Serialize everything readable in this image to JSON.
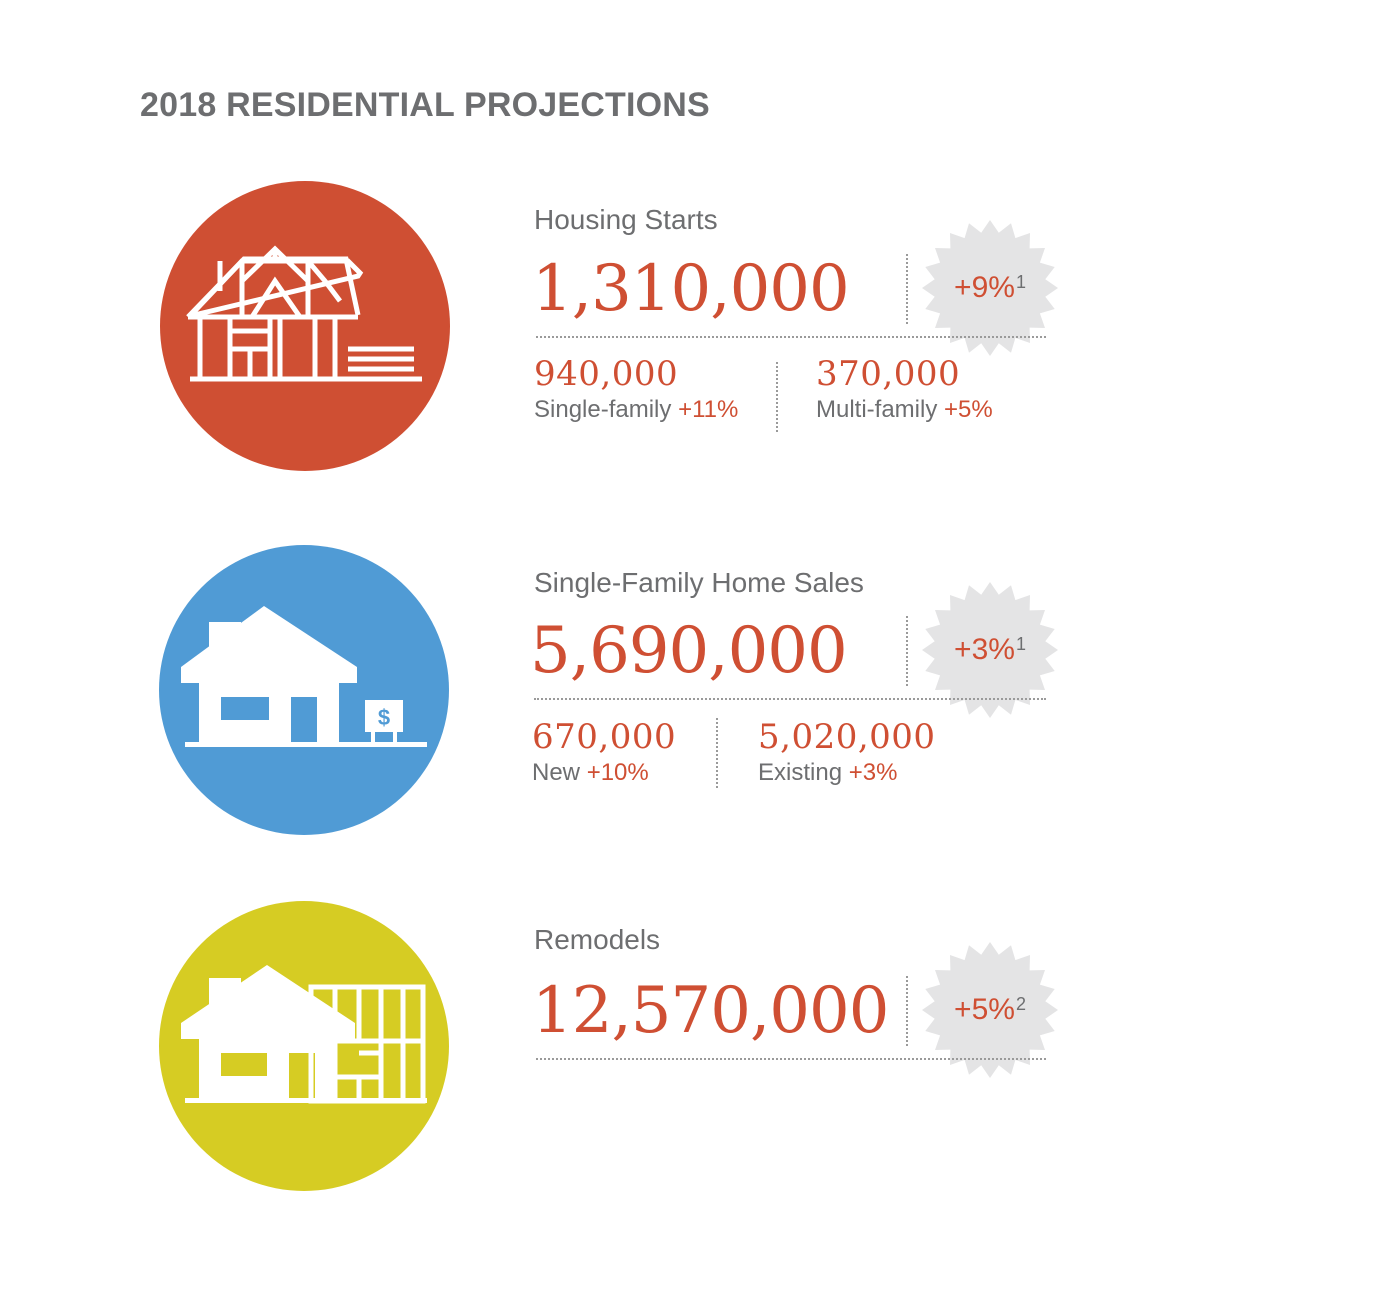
{
  "page": {
    "title": "2018 RESIDENTIAL PROJECTIONS"
  },
  "colors": {
    "orange": "#cf4f33",
    "blue": "#509bd5",
    "yellow": "#d6cc23",
    "gray_text": "#6d6e70",
    "burst_gray": "#e4e4e5"
  },
  "sections": [
    {
      "label": "Housing Starts",
      "value": "1,310,000",
      "change": "+9%",
      "footnote": "1",
      "icon": "house-frame-icon",
      "subs": [
        {
          "value": "940,000",
          "label": "Single-family",
          "change": "+11%"
        },
        {
          "value": "370,000",
          "label": "Multi-family",
          "change": "+5%"
        }
      ]
    },
    {
      "label": "Single-Family Home Sales",
      "value": "5,690,000",
      "change": "+3%",
      "footnote": "1",
      "icon": "house-for-sale-icon",
      "sign_text": "$",
      "subs": [
        {
          "value": "670,000",
          "label": "New",
          "change": "+10%"
        },
        {
          "value": "5,020,000",
          "label": "Existing",
          "change": "+3%"
        }
      ]
    },
    {
      "label": "Remodels",
      "value": "12,570,000",
      "change": "+5%",
      "footnote": "2",
      "icon": "house-addition-icon"
    }
  ]
}
